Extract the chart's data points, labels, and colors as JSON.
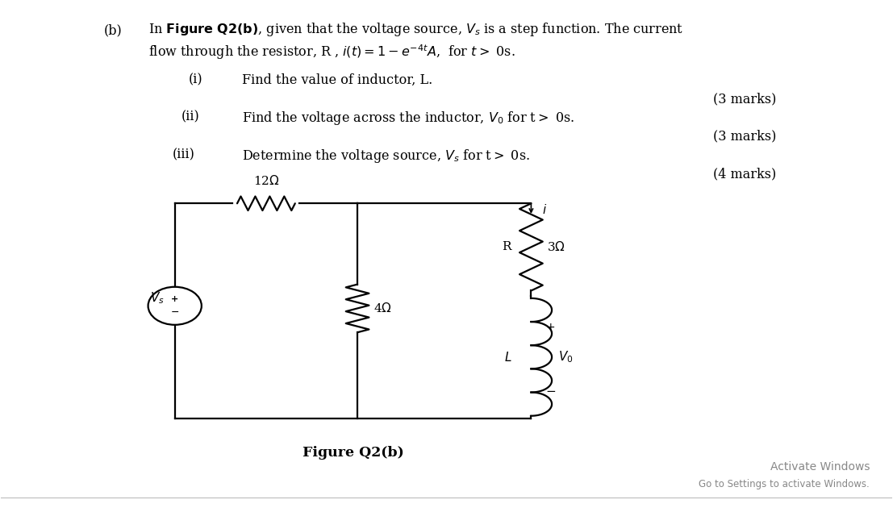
{
  "bg_color": "#ffffff",
  "text_color": "#000000",
  "title_b": "(b)",
  "q1_label": "(i)",
  "q1_text": "Find the value of inductor, L.",
  "q1_marks": "(3 marks)",
  "q2_label": "(ii)",
  "q2_marks": "(3 marks)",
  "q3_label": "(iii)",
  "q3_text": "Determine the voltage source,",
  "q3_marks": "(4 marks)",
  "figure_label": "Figure Q2(b)",
  "activate_windows": "Activate Windows",
  "activate_windows_sub": "Go to Settings to activate Windows.",
  "lw": 1.6,
  "cL": 0.195,
  "cR": 0.595,
  "cT": 0.6,
  "cB": 0.175,
  "cM": 0.4
}
